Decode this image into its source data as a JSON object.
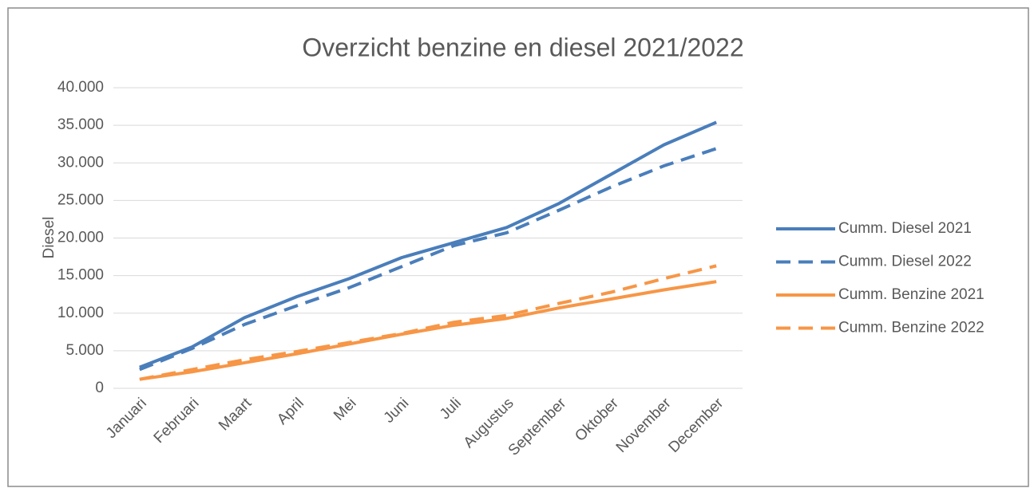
{
  "chart_data": {
    "type": "line",
    "title": "Overzicht benzine en diesel 2021/2022",
    "y_label": "Diesel",
    "categories": [
      "Januari",
      "Februari",
      "Maart",
      "April",
      "Mei",
      "Juni",
      "Juli",
      "Augustus",
      "September",
      "Oktober",
      "November",
      "December"
    ],
    "series": [
      {
        "name": "Cumm. Diesel 2021",
        "color": "#4a7ebb",
        "dashed": false,
        "values": [
          2800,
          5500,
          9400,
          12200,
          14600,
          17400,
          19400,
          21400,
          24600,
          28500,
          32400,
          35400
        ]
      },
      {
        "name": "Cumm. Diesel 2022",
        "color": "#4a7ebb",
        "dashed": true,
        "values": [
          2500,
          5300,
          8500,
          11000,
          13400,
          16200,
          19000,
          20700,
          23700,
          26800,
          29600,
          31900
        ]
      },
      {
        "name": "Cumm. Benzine 2021",
        "color": "#f79646",
        "dashed": false,
        "values": [
          1200,
          2200,
          3400,
          4600,
          5900,
          7200,
          8400,
          9300,
          10700,
          11900,
          13100,
          14200
        ]
      },
      {
        "name": "Cumm. Benzine 2022",
        "color": "#f79646",
        "dashed": true,
        "values": [
          1200,
          2500,
          3800,
          4900,
          6100,
          7300,
          8800,
          9700,
          11300,
          12800,
          14600,
          16300
        ]
      }
    ],
    "ylim": [
      0,
      40000
    ],
    "yticks": [
      0,
      {
        "value": 5000,
        "label": "5.000"
      },
      {
        "value": 10000,
        "label": "10.000"
      },
      {
        "value": 15000,
        "label": "15.000"
      },
      {
        "value": 20000,
        "label": "20.000"
      },
      {
        "value": 25000,
        "label": "25.000"
      },
      {
        "value": 30000,
        "label": "30.000"
      },
      {
        "value": 35000,
        "label": "35.000"
      },
      {
        "value": 40000,
        "label": "40.000"
      }
    ],
    "grid": true,
    "legend": "right"
  }
}
